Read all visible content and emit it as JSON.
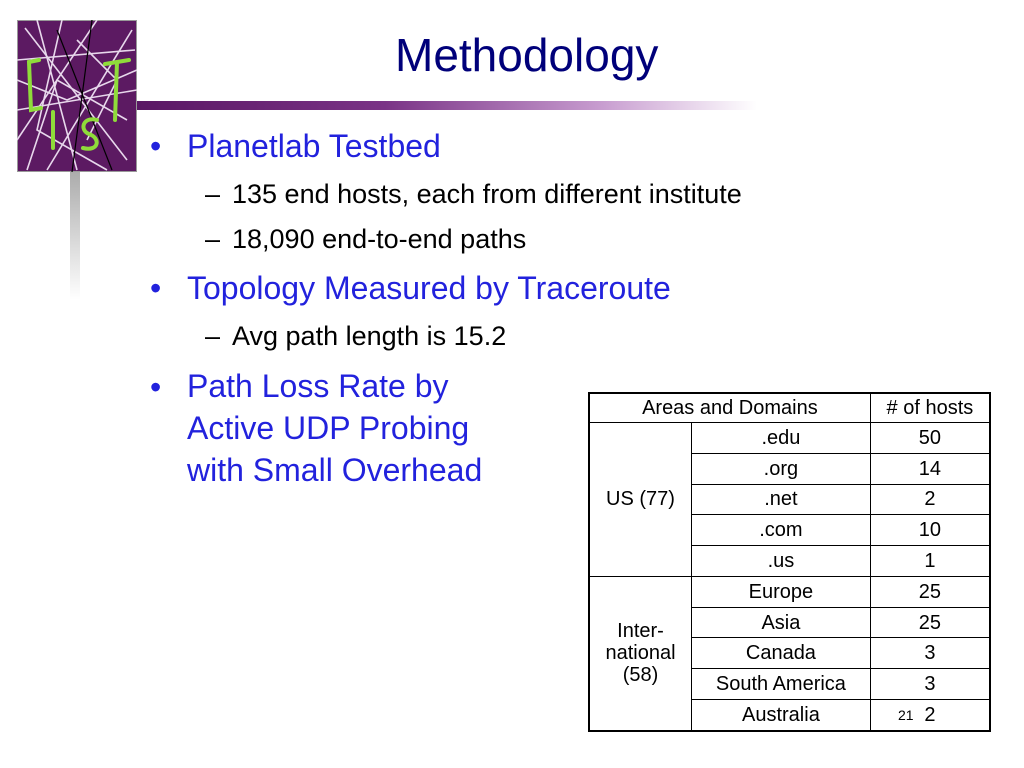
{
  "title": "Methodology",
  "bullets": [
    {
      "text": "Planetlab Testbed",
      "subs": [
        "135 end hosts, each from different institute",
        "18,090 end-to-end paths"
      ]
    },
    {
      "text": "Topology Measured by Traceroute",
      "subs": [
        "Avg path length is 15.2"
      ]
    },
    {
      "lines": [
        "Path Loss Rate by",
        "Active UDP Probing",
        "with Small Overhead"
      ]
    }
  ],
  "bullet_glyph": "•",
  "dash_glyph": "–",
  "table": {
    "headers": [
      "Areas and Domains",
      "# of hosts"
    ],
    "groups": [
      {
        "label": "US (77)",
        "rows": [
          {
            "domain": ".edu",
            "hosts": "50"
          },
          {
            "domain": ".org",
            "hosts": "14"
          },
          {
            "domain": ".net",
            "hosts": "2"
          },
          {
            "domain": ".com",
            "hosts": "10"
          },
          {
            "domain": ".us",
            "hosts": "1"
          }
        ]
      },
      {
        "label_lines": [
          "Inter-",
          "national",
          "(58)"
        ],
        "rows": [
          {
            "domain": "Europe",
            "hosts": "25"
          },
          {
            "domain": "Asia",
            "hosts": "25"
          },
          {
            "domain": "Canada",
            "hosts": "3"
          },
          {
            "domain": "South America",
            "hosts": "3"
          },
          {
            "domain": "Australia",
            "hosts": "2"
          }
        ]
      }
    ]
  },
  "page_number": "21",
  "colors": {
    "title": "#00007a",
    "bullet": "#2222dd",
    "accent": "#5a1764"
  }
}
